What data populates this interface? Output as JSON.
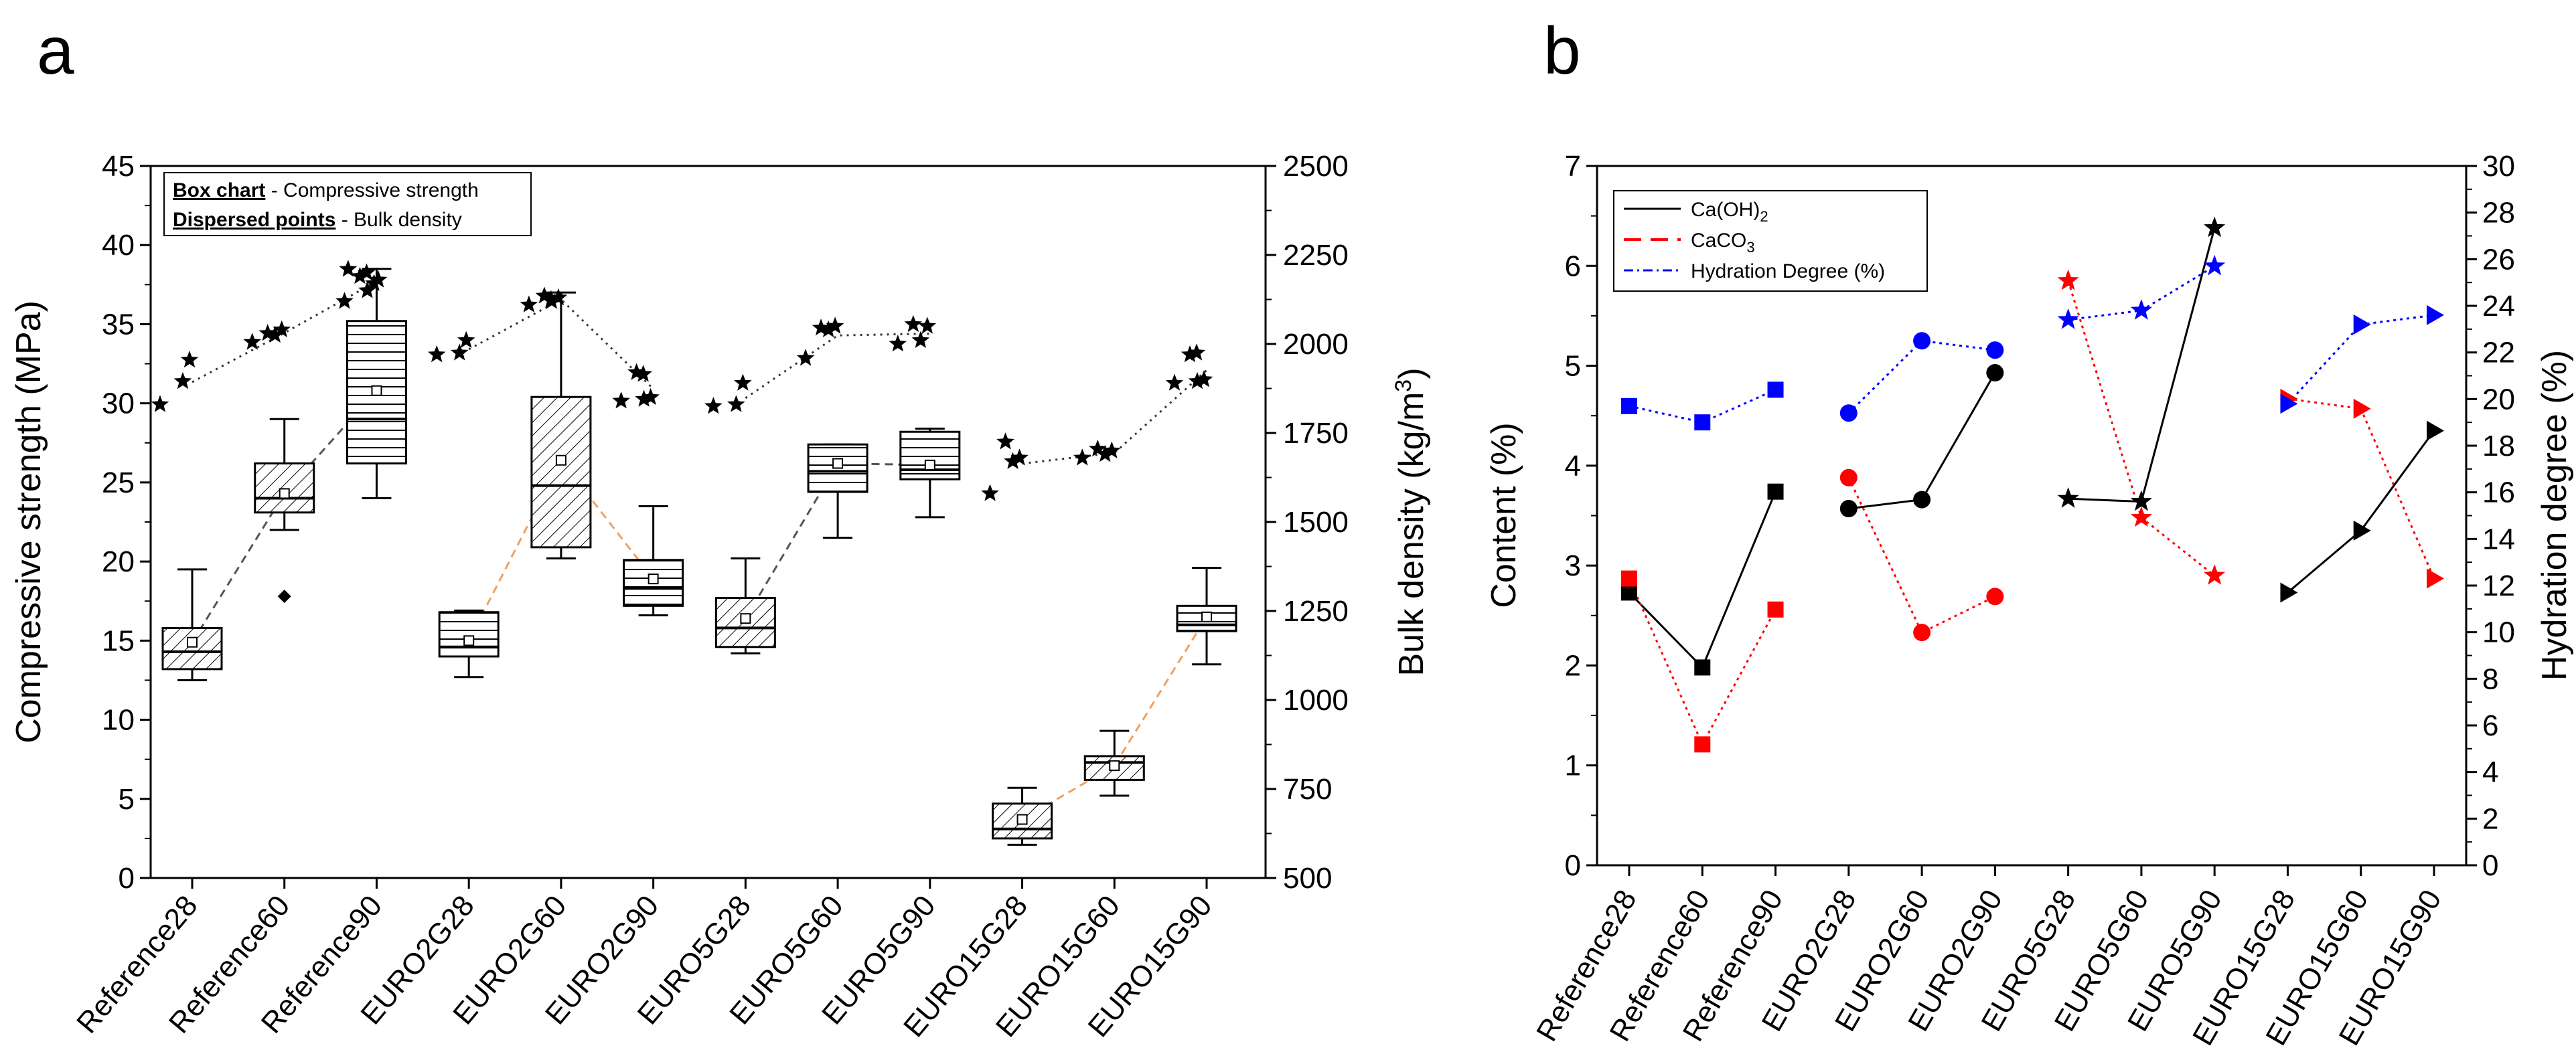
{
  "panel_labels": {
    "a": "a",
    "b": "b"
  },
  "chart_data": [
    {
      "type": "box",
      "panel": "a",
      "title": "",
      "categories": [
        "Reference28",
        "Reference60",
        "Reference90",
        "EURO2G28",
        "EURO2G60",
        "EURO2G90",
        "EURO5G28",
        "EURO5G60",
        "EURO5G90",
        "EURO15G28",
        "EURO15G60",
        "EURO15G90"
      ],
      "ylabel": "Compressive strength (MPa)",
      "ylim": [
        0,
        45
      ],
      "yticks": [
        "0",
        "5",
        "10",
        "15",
        "20",
        "25",
        "30",
        "35",
        "40",
        "45"
      ],
      "y2label_parts": [
        "Bulk density (kg/m",
        "3",
        ")"
      ],
      "y2lim": [
        500,
        2500
      ],
      "y2ticks": [
        "500",
        "750",
        "1000",
        "1250",
        "1500",
        "1750",
        "2000",
        "2250",
        "2500"
      ],
      "legend": {
        "line1_bold": "Box chart",
        "line1_rest": " - Compressive strength",
        "line2_bold": "Dispersed points",
        "line2_rest": " - Bulk density"
      },
      "boxes": [
        {
          "category": "Reference28",
          "whisker_low": 12.5,
          "q1": 13.2,
          "median": 14.3,
          "q3": 15.8,
          "whisker_high": 19.5,
          "mean": 14.9,
          "hatch": "diag",
          "outliers": []
        },
        {
          "category": "Reference60",
          "whisker_low": 22.0,
          "q1": 23.1,
          "median": 24.0,
          "q3": 26.2,
          "whisker_high": 29.0,
          "mean": 24.3,
          "hatch": "diag",
          "outliers": [
            17.8
          ]
        },
        {
          "category": "Reference90",
          "whisker_low": 24.0,
          "q1": 26.2,
          "median": 29.0,
          "q3": 35.2,
          "whisker_high": 38.5,
          "mean": 30.8,
          "hatch": "horiz",
          "outliers": []
        },
        {
          "category": "EURO2G28",
          "whisker_low": 12.7,
          "q1": 14.0,
          "median": 14.6,
          "q3": 16.8,
          "whisker_high": 16.9,
          "mean": 15.0,
          "hatch": "horiz",
          "outliers": []
        },
        {
          "category": "EURO2G60",
          "whisker_low": 20.2,
          "q1": 20.9,
          "median": 24.8,
          "q3": 30.4,
          "whisker_high": 37.0,
          "mean": 26.4,
          "hatch": "diag",
          "outliers": []
        },
        {
          "category": "EURO2G90",
          "whisker_low": 16.6,
          "q1": 17.2,
          "median": 18.3,
          "q3": 20.1,
          "whisker_high": 23.5,
          "mean": 18.9,
          "hatch": "horiz",
          "outliers": []
        },
        {
          "category": "EURO5G28",
          "whisker_low": 14.2,
          "q1": 14.6,
          "median": 15.8,
          "q3": 17.7,
          "whisker_high": 20.2,
          "mean": 16.4,
          "hatch": "diag",
          "outliers": []
        },
        {
          "category": "EURO5G60",
          "whisker_low": 21.5,
          "q1": 24.4,
          "median": 25.7,
          "q3": 27.4,
          "whisker_high": 27.4,
          "mean": 26.2,
          "hatch": "horiz",
          "outliers": []
        },
        {
          "category": "EURO5G90",
          "whisker_low": 22.8,
          "q1": 25.2,
          "median": 25.8,
          "q3": 28.2,
          "whisker_high": 28.4,
          "mean": 26.1,
          "hatch": "horiz",
          "outliers": []
        },
        {
          "category": "EURO15G28",
          "whisker_low": 2.1,
          "q1": 2.5,
          "median": 3.1,
          "q3": 4.7,
          "whisker_high": 5.7,
          "mean": 3.7,
          "hatch": "diag",
          "outliers": []
        },
        {
          "category": "EURO15G60",
          "whisker_low": 5.2,
          "q1": 6.2,
          "median": 7.3,
          "q3": 7.7,
          "whisker_high": 9.3,
          "mean": 7.1,
          "hatch": "diag",
          "outliers": []
        },
        {
          "category": "EURO15G90",
          "whisker_low": 13.5,
          "q1": 15.6,
          "median": 16.0,
          "q3": 17.2,
          "whisker_high": 19.6,
          "mean": 16.5,
          "hatch": "horiz",
          "outliers": []
        }
      ],
      "mean_links": [
        {
          "from": 0,
          "to": 2,
          "style": "dark-dashed"
        },
        {
          "from": 3,
          "to": 5,
          "style": "orange-dashed"
        },
        {
          "from": 6,
          "to": 8,
          "style": "dark-dashed"
        },
        {
          "from": 9,
          "to": 11,
          "style": "orange-dashed"
        }
      ],
      "bulk_density_points": [
        {
          "category": "Reference28",
          "values": [
            1830,
            1895,
            1955
          ]
        },
        {
          "category": "Reference60",
          "values": [
            2005,
            2025,
            2040,
            2030
          ]
        },
        {
          "category": "Reference90",
          "values": [
            2120,
            2150,
            2170,
            2190,
            2200,
            2210,
            2180
          ]
        },
        {
          "category": "EURO2G28",
          "values": [
            1970,
            1975,
            2010
          ]
        },
        {
          "category": "EURO2G60",
          "values": [
            2110,
            2120,
            2130,
            2135,
            2125
          ]
        },
        {
          "category": "EURO2G90",
          "values": [
            1840,
            1845,
            1850,
            1920,
            1915
          ]
        },
        {
          "category": "EURO5G28",
          "values": [
            1825,
            1830,
            1890
          ]
        },
        {
          "category": "EURO5G60",
          "values": [
            1960,
            2040,
            2050,
            2045
          ]
        },
        {
          "category": "EURO5G90",
          "values": [
            2000,
            2010,
            2050,
            2055
          ]
        },
        {
          "category": "EURO15G28",
          "values": [
            1580,
            1670,
            1680,
            1725
          ]
        },
        {
          "category": "EURO15G60",
          "values": [
            1680,
            1690,
            1700,
            1705
          ]
        },
        {
          "category": "EURO15G90",
          "values": [
            1890,
            1895,
            1900,
            1970,
            1975
          ]
        }
      ],
      "bulk_density_mean_links": [
        {
          "from": 0,
          "to": 2,
          "values": [
            1893,
            2031,
            2176
          ]
        },
        {
          "from": 3,
          "to": 5,
          "values": [
            1985,
            2125,
            1874
          ]
        },
        {
          "from": 6,
          "to": 8,
          "values": [
            1848,
            2024,
            2029
          ]
        },
        {
          "from": 9,
          "to": 11,
          "values": [
            1664,
            1694,
            1926
          ]
        }
      ],
      "colors": {
        "box_edge": "#000000",
        "dark_link": "#555555",
        "orange_link": "#f0a060",
        "point": "#000000"
      }
    },
    {
      "type": "scatter",
      "panel": "b",
      "title": "",
      "categories": [
        "Reference28",
        "Reference60",
        "Reference90",
        "EURO2G28",
        "EURO2G60",
        "EURO2G90",
        "EURO5G28",
        "EURO5G60",
        "EURO5G90",
        "EURO15G28",
        "EURO15G60",
        "EURO15G90"
      ],
      "ylabel": "Content (%)",
      "ylim": [
        0,
        7
      ],
      "yticks": [
        "0",
        "1",
        "2",
        "3",
        "4",
        "5",
        "6",
        "7"
      ],
      "y2label": "Hydration degree (%)",
      "y2lim": [
        0,
        30
      ],
      "y2ticks": [
        "0",
        "2",
        "4",
        "6",
        "8",
        "10",
        "12",
        "14",
        "16",
        "18",
        "20",
        "22",
        "24",
        "26",
        "28",
        "30"
      ],
      "legend": [
        {
          "label_parts": [
            "Ca(OH)",
            "2",
            ""
          ],
          "style": "solid",
          "color": "#000000"
        },
        {
          "label_parts": [
            "CaCO",
            "3",
            ""
          ],
          "style": "dashed",
          "color": "#ff0000"
        },
        {
          "label_parts": [
            "Hydration Degree (%)",
            "",
            ""
          ],
          "style": "dashdot",
          "color": "#0000ff"
        }
      ],
      "groups": [
        {
          "marker": "square",
          "indices": [
            0,
            1,
            2
          ]
        },
        {
          "marker": "circle",
          "indices": [
            3,
            4,
            5
          ]
        },
        {
          "marker": "star",
          "indices": [
            6,
            7,
            8
          ]
        },
        {
          "marker": "triangle-right",
          "indices": [
            9,
            10,
            11
          ]
        }
      ],
      "series": [
        {
          "name": "Ca(OH)2",
          "axis": "left",
          "color": "#000000",
          "values": [
            2.73,
            1.98,
            3.74,
            3.57,
            3.66,
            4.93,
            3.67,
            3.64,
            6.38,
            2.73,
            3.35,
            4.35
          ]
        },
        {
          "name": "CaCO3",
          "axis": "left",
          "color": "#ff0000",
          "values": [
            2.87,
            1.21,
            2.56,
            3.88,
            2.33,
            2.69,
            5.85,
            3.48,
            2.9,
            4.67,
            4.57,
            2.87
          ]
        },
        {
          "name": "Hydration Degree (%)",
          "axis": "right",
          "color": "#0000ff",
          "values": [
            19.7,
            19.0,
            20.4,
            19.4,
            22.5,
            22.1,
            23.4,
            23.8,
            25.7,
            19.8,
            23.2,
            23.6
          ]
        }
      ]
    }
  ]
}
